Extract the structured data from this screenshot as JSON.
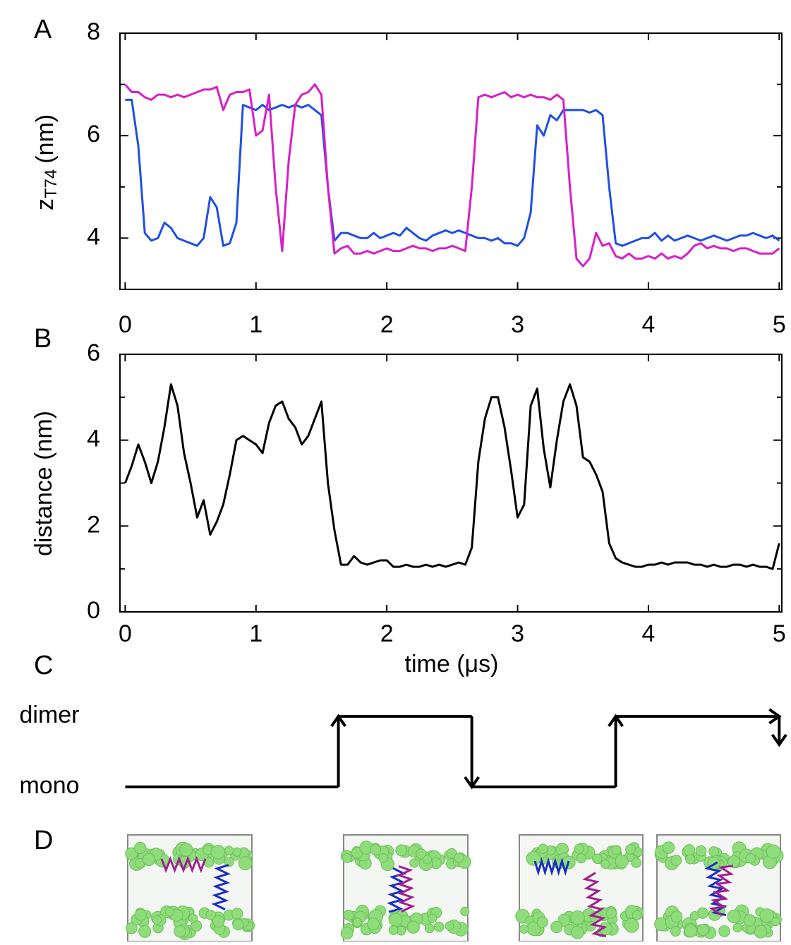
{
  "chart_data": [
    {
      "type": "line",
      "panel": "A",
      "ylabel": {
        "text": "z",
        "subscript": "T74",
        "unit": "(nm)"
      },
      "x": [
        0,
        0.05,
        0.1,
        0.15,
        0.2,
        0.25,
        0.3,
        0.35,
        0.4,
        0.45,
        0.5,
        0.55,
        0.6,
        0.65,
        0.7,
        0.75,
        0.8,
        0.85,
        0.9,
        0.95,
        1,
        1.05,
        1.1,
        1.15,
        1.2,
        1.25,
        1.3,
        1.35,
        1.4,
        1.45,
        1.5,
        1.55,
        1.6,
        1.65,
        1.7,
        1.75,
        1.8,
        1.85,
        1.9,
        1.95,
        2,
        2.05,
        2.1,
        2.15,
        2.2,
        2.25,
        2.3,
        2.35,
        2.4,
        2.45,
        2.5,
        2.55,
        2.6,
        2.65,
        2.7,
        2.75,
        2.8,
        2.85,
        2.9,
        2.95,
        3,
        3.05,
        3.1,
        3.15,
        3.2,
        3.25,
        3.3,
        3.35,
        3.4,
        3.45,
        3.5,
        3.55,
        3.6,
        3.65,
        3.7,
        3.75,
        3.8,
        3.85,
        3.9,
        3.95,
        4,
        4.05,
        4.1,
        4.15,
        4.2,
        4.25,
        4.3,
        4.35,
        4.4,
        4.45,
        4.5,
        4.55,
        4.6,
        4.65,
        4.7,
        4.75,
        4.8,
        4.85,
        4.9,
        4.95,
        5
      ],
      "series": [
        {
          "color": "#1f4fe6",
          "values": [
            6.7,
            6.7,
            5.8,
            4.1,
            3.95,
            4.0,
            4.3,
            4.2,
            4.0,
            3.95,
            3.9,
            3.85,
            4.0,
            4.8,
            4.6,
            3.85,
            3.9,
            4.3,
            6.6,
            6.55,
            6.5,
            6.6,
            6.5,
            6.55,
            6.6,
            6.55,
            6.6,
            6.55,
            6.6,
            6.5,
            6.4,
            5.0,
            3.95,
            4.1,
            4.1,
            4.05,
            4.0,
            4.0,
            4.1,
            4.0,
            4.05,
            4.1,
            4.05,
            4.2,
            4.1,
            4.0,
            3.95,
            4.05,
            4.1,
            4.15,
            4.1,
            4.15,
            4.1,
            4.05,
            4.0,
            4.0,
            3.95,
            4.0,
            3.9,
            3.9,
            3.85,
            4.0,
            4.5,
            6.2,
            6.0,
            6.4,
            6.3,
            6.5,
            6.5,
            6.5,
            6.5,
            6.45,
            6.5,
            6.4,
            5.0,
            3.9,
            3.85,
            3.9,
            3.95,
            4.0,
            4.0,
            4.1,
            3.95,
            4.05,
            3.95,
            4.0,
            4.05,
            4.0,
            3.95,
            4.0,
            4.05,
            4.0,
            3.95,
            4.0,
            4.05,
            4.05,
            4.1,
            4.05,
            4.0,
            4.05,
            3.95
          ]
        },
        {
          "color": "#d81fc8",
          "values": [
            7.0,
            6.85,
            6.85,
            6.75,
            6.7,
            6.8,
            6.8,
            6.75,
            6.8,
            6.75,
            6.8,
            6.85,
            6.9,
            6.9,
            6.95,
            6.5,
            6.8,
            6.85,
            6.85,
            6.9,
            6.0,
            6.1,
            6.8,
            5.0,
            3.75,
            5.5,
            6.6,
            6.8,
            6.85,
            7.0,
            6.8,
            5.0,
            3.7,
            3.8,
            3.85,
            3.7,
            3.7,
            3.75,
            3.7,
            3.75,
            3.8,
            3.75,
            3.75,
            3.8,
            3.85,
            3.8,
            3.8,
            3.75,
            3.8,
            3.8,
            3.85,
            3.8,
            3.75,
            5.0,
            6.75,
            6.8,
            6.75,
            6.8,
            6.85,
            6.75,
            6.8,
            6.75,
            6.8,
            6.75,
            6.75,
            6.7,
            6.8,
            6.7,
            5.0,
            3.6,
            3.45,
            3.6,
            4.1,
            3.85,
            3.9,
            3.65,
            3.6,
            3.7,
            3.6,
            3.6,
            3.65,
            3.6,
            3.7,
            3.6,
            3.65,
            3.6,
            3.7,
            3.85,
            3.9,
            3.8,
            3.85,
            3.8,
            3.8,
            3.75,
            3.8,
            3.8,
            3.75,
            3.7,
            3.7,
            3.7,
            3.8
          ]
        }
      ],
      "xlim": [
        -0.04,
        5.02
      ],
      "xticks": [
        0,
        1,
        2,
        3,
        4,
        5
      ],
      "ylim": [
        3,
        8
      ],
      "yticks": [
        4,
        6,
        8
      ],
      "yticks_minor": [
        3,
        5,
        7
      ]
    },
    {
      "type": "line",
      "panel": "B",
      "ylabel": "distance (nm)",
      "xlabel": "time (μs)",
      "x": [
        0,
        0.05,
        0.1,
        0.15,
        0.2,
        0.25,
        0.3,
        0.35,
        0.4,
        0.45,
        0.5,
        0.55,
        0.6,
        0.65,
        0.7,
        0.75,
        0.8,
        0.85,
        0.9,
        0.95,
        1,
        1.05,
        1.1,
        1.15,
        1.2,
        1.25,
        1.3,
        1.35,
        1.4,
        1.45,
        1.5,
        1.55,
        1.6,
        1.65,
        1.7,
        1.75,
        1.8,
        1.85,
        1.9,
        1.95,
        2,
        2.05,
        2.1,
        2.15,
        2.2,
        2.25,
        2.3,
        2.35,
        2.4,
        2.45,
        2.5,
        2.55,
        2.6,
        2.65,
        2.7,
        2.75,
        2.8,
        2.85,
        2.9,
        2.95,
        3,
        3.05,
        3.1,
        3.15,
        3.2,
        3.25,
        3.3,
        3.35,
        3.4,
        3.45,
        3.5,
        3.55,
        3.6,
        3.65,
        3.7,
        3.75,
        3.8,
        3.85,
        3.9,
        3.95,
        4,
        4.05,
        4.1,
        4.15,
        4.2,
        4.25,
        4.3,
        4.35,
        4.4,
        4.45,
        4.5,
        4.55,
        4.6,
        4.65,
        4.7,
        4.75,
        4.8,
        4.85,
        4.9,
        4.95,
        5
      ],
      "series": [
        {
          "color": "#000000",
          "values": [
            3.0,
            3.4,
            3.9,
            3.5,
            3.0,
            3.5,
            4.3,
            5.3,
            4.8,
            3.7,
            3.0,
            2.2,
            2.6,
            1.8,
            2.1,
            2.5,
            3.2,
            4.0,
            4.1,
            4.0,
            3.9,
            3.7,
            4.4,
            4.8,
            4.9,
            4.5,
            4.3,
            3.9,
            4.1,
            4.5,
            4.9,
            3.0,
            1.9,
            1.1,
            1.1,
            1.3,
            1.15,
            1.1,
            1.15,
            1.2,
            1.2,
            1.05,
            1.05,
            1.1,
            1.05,
            1.05,
            1.1,
            1.05,
            1.1,
            1.05,
            1.1,
            1.15,
            1.1,
            1.5,
            3.5,
            4.5,
            5.0,
            5.0,
            4.3,
            3.3,
            2.2,
            2.5,
            4.8,
            5.2,
            3.8,
            2.9,
            4.0,
            4.9,
            5.3,
            4.8,
            3.6,
            3.5,
            3.2,
            2.8,
            1.6,
            1.25,
            1.15,
            1.1,
            1.05,
            1.05,
            1.1,
            1.1,
            1.15,
            1.1,
            1.15,
            1.15,
            1.15,
            1.1,
            1.1,
            1.05,
            1.1,
            1.05,
            1.05,
            1.1,
            1.1,
            1.05,
            1.1,
            1.05,
            1.05,
            1.0,
            1.6
          ]
        }
      ],
      "xlim": [
        -0.04,
        5.02
      ],
      "xticks": [
        0,
        1,
        2,
        3,
        4,
        5
      ],
      "ylim": [
        0,
        6
      ],
      "yticks": [
        0,
        2,
        4,
        6
      ],
      "yticks_minor": [
        1,
        3,
        5
      ]
    },
    {
      "type": "step",
      "panel": "C",
      "categories": [
        "mono",
        "dimer"
      ],
      "x": [
        0,
        1.63,
        2.65,
        3.75,
        5
      ],
      "values": [
        0,
        1,
        0,
        1,
        0
      ],
      "color": "#000000",
      "xlim": [
        -0.04,
        5.02
      ]
    }
  ],
  "panel_d": {
    "panel": "D"
  }
}
